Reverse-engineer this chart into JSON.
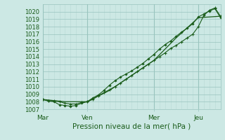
{
  "title": "",
  "xlabel": "Pression niveau de la mer( hPa )",
  "bg_color": "#cce8e4",
  "plot_bg_color": "#cce8e4",
  "grid_major_color": "#99c4be",
  "grid_minor_color": "#b8d8d4",
  "line_color": "#1a5c1a",
  "ylim": [
    1007,
    1021
  ],
  "yticks": [
    1007,
    1008,
    1009,
    1010,
    1011,
    1012,
    1013,
    1014,
    1015,
    1016,
    1017,
    1018,
    1019,
    1020
  ],
  "day_labels": [
    "Mar",
    "Ven",
    "Mer",
    "Jeu"
  ],
  "day_positions": [
    0,
    48,
    120,
    168
  ],
  "total_hours": 192,
  "line1_x": [
    0,
    6,
    12,
    18,
    24,
    30,
    36,
    42,
    48,
    54,
    60,
    66,
    72,
    78,
    84,
    90,
    96,
    102,
    108,
    114,
    120,
    126,
    132,
    138,
    144,
    150,
    156,
    162,
    168,
    174,
    180,
    186,
    192
  ],
  "line1_y": [
    1008.3,
    1008.1,
    1008.1,
    1008.0,
    1007.8,
    1007.7,
    1007.7,
    1007.9,
    1008.0,
    1008.3,
    1008.8,
    1009.2,
    1009.6,
    1010.0,
    1010.5,
    1011.0,
    1011.5,
    1012.0,
    1012.5,
    1013.0,
    1013.5,
    1014.0,
    1014.5,
    1015.1,
    1015.5,
    1016.0,
    1016.5,
    1017.0,
    1018.0,
    1019.5,
    1020.2,
    1020.5,
    1019.4
  ],
  "line2_x": [
    0,
    6,
    12,
    18,
    24,
    30,
    36,
    42,
    48,
    54,
    60,
    66,
    72,
    78,
    84,
    90,
    96,
    102,
    108,
    114,
    120,
    126,
    132,
    138,
    144,
    150,
    156,
    162,
    168,
    174,
    180,
    186,
    192
  ],
  "line2_y": [
    1008.3,
    1008.1,
    1008.0,
    1007.6,
    1007.5,
    1007.4,
    1007.5,
    1007.8,
    1008.0,
    1008.5,
    1008.9,
    1009.5,
    1010.2,
    1010.8,
    1011.3,
    1011.7,
    1012.1,
    1012.6,
    1013.1,
    1013.7,
    1014.3,
    1015.0,
    1015.6,
    1016.1,
    1016.7,
    1017.3,
    1017.8,
    1018.4,
    1019.3,
    1019.7,
    1020.1,
    1020.4,
    1019.2
  ],
  "line3_x": [
    0,
    24,
    48,
    72,
    96,
    120,
    144,
    168,
    192
  ],
  "line3_y": [
    1008.3,
    1008.0,
    1008.0,
    1009.5,
    1011.5,
    1013.5,
    1016.5,
    1019.2,
    1019.4
  ]
}
